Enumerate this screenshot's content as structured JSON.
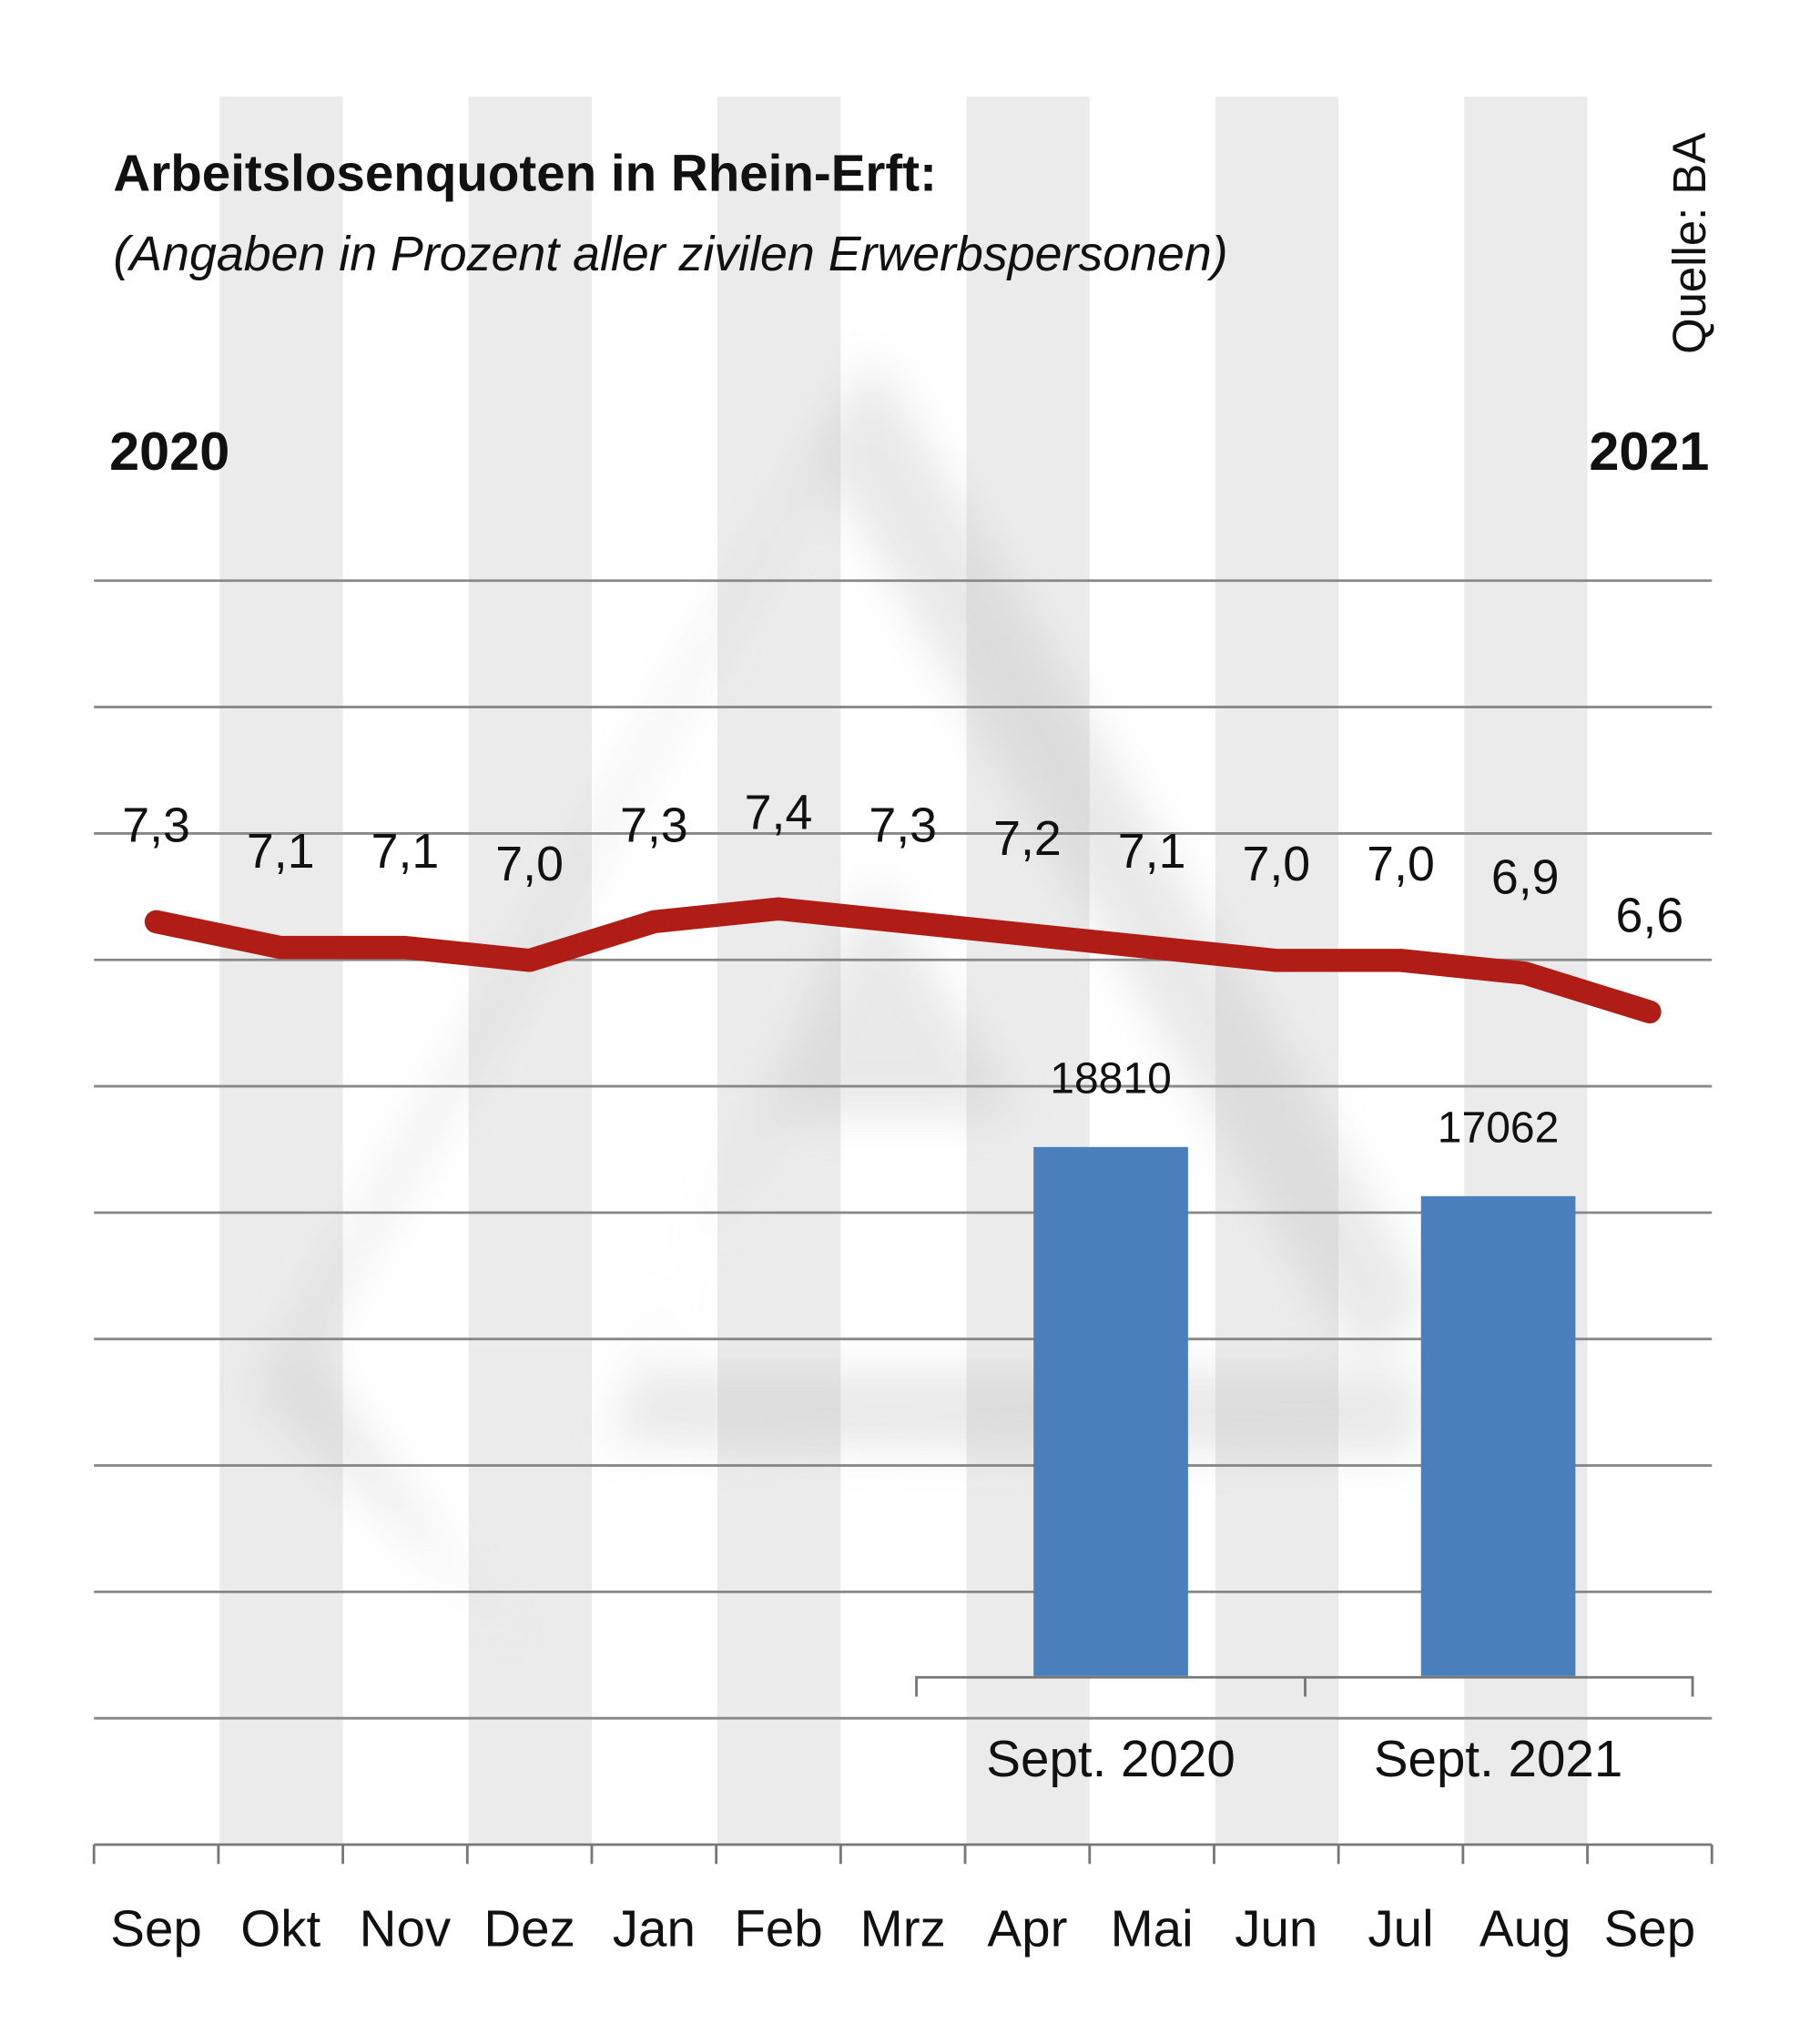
{
  "chart_data": {
    "type": "line",
    "title": "Arbeitslosenquoten in Rhein-Erft:",
    "subtitle": "(Angaben in Prozent aller zivilen Erwerbspersonen)",
    "source": "Quelle: BA",
    "year_start": "2020",
    "year_end": "2021",
    "categories": [
      "Sep",
      "Okt",
      "Nov",
      "Dez",
      "Jan",
      "Feb",
      "Mrz",
      "Apr",
      "Mai",
      "Jun",
      "Jul",
      "Aug",
      "Sep"
    ],
    "values": [
      7.3,
      7.1,
      7.1,
      7.0,
      7.3,
      7.4,
      7.3,
      7.2,
      7.1,
      7.0,
      7.0,
      6.9,
      6.6
    ],
    "value_labels": [
      "7,3",
      "7,1",
      "7,1",
      "7,0",
      "7,3",
      "7,4",
      "7,3",
      "7,2",
      "7,1",
      "7,0",
      "7,0",
      "6,9",
      "6,6"
    ],
    "line_color": "#b01c16",
    "grid": true,
    "inset_bar": {
      "type": "bar",
      "categories": [
        "Sept. 2020",
        "Sept. 2021"
      ],
      "values": [
        18810,
        17062
      ],
      "value_labels": [
        "18810",
        "17062"
      ],
      "color": "#4a7fbb"
    }
  }
}
